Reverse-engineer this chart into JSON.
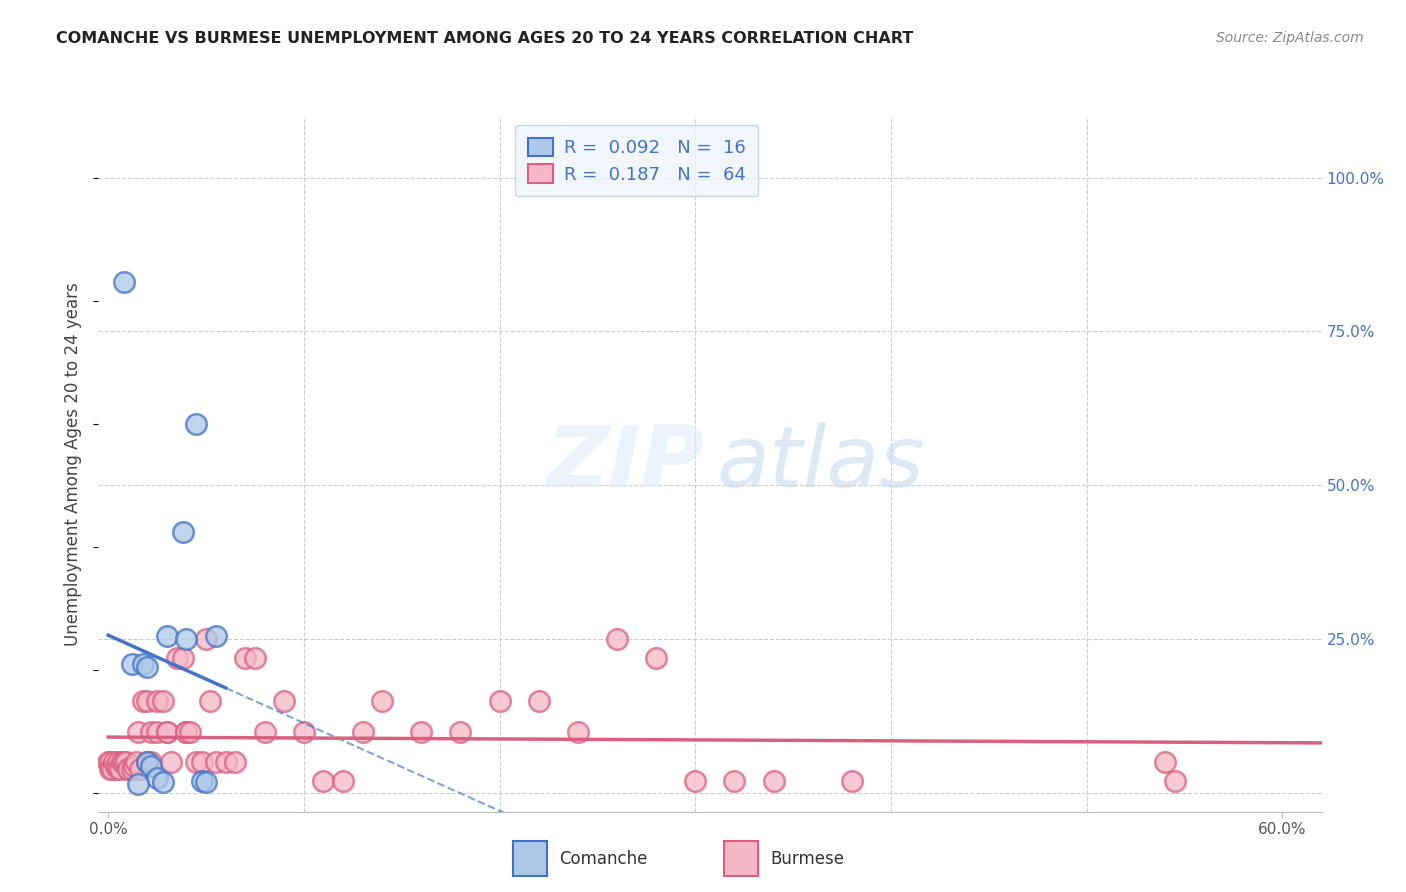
{
  "title": "COMANCHE VS BURMESE UNEMPLOYMENT AMONG AGES 20 TO 24 YEARS CORRELATION CHART",
  "source": "Source: ZipAtlas.com",
  "ylabel": "Unemployment Among Ages 20 to 24 years",
  "xlim": [
    -0.005,
    0.62
  ],
  "ylim": [
    -0.03,
    1.1
  ],
  "comanche_x": [
    0.008,
    0.012,
    0.018,
    0.02,
    0.02,
    0.022,
    0.025,
    0.03,
    0.038,
    0.04,
    0.045,
    0.048,
    0.05,
    0.055,
    0.028,
    0.015
  ],
  "comanche_y": [
    0.83,
    0.21,
    0.21,
    0.205,
    0.05,
    0.045,
    0.025,
    0.255,
    0.425,
    0.25,
    0.6,
    0.02,
    0.018,
    0.255,
    0.018,
    0.015
  ],
  "burmese_x": [
    0.0,
    0.001,
    0.001,
    0.002,
    0.003,
    0.004,
    0.005,
    0.005,
    0.006,
    0.007,
    0.008,
    0.009,
    0.01,
    0.01,
    0.012,
    0.013,
    0.014,
    0.015,
    0.016,
    0.018,
    0.02,
    0.02,
    0.022,
    0.022,
    0.025,
    0.025,
    0.028,
    0.03,
    0.03,
    0.032,
    0.035,
    0.038,
    0.04,
    0.04,
    0.042,
    0.045,
    0.048,
    0.05,
    0.052,
    0.055,
    0.06,
    0.065,
    0.07,
    0.075,
    0.08,
    0.09,
    0.1,
    0.11,
    0.12,
    0.13,
    0.14,
    0.16,
    0.18,
    0.2,
    0.22,
    0.24,
    0.26,
    0.28,
    0.3,
    0.32,
    0.34,
    0.38,
    0.54,
    0.545
  ],
  "burmese_y": [
    0.05,
    0.05,
    0.04,
    0.04,
    0.05,
    0.045,
    0.05,
    0.04,
    0.04,
    0.05,
    0.05,
    0.05,
    0.04,
    0.04,
    0.04,
    0.045,
    0.05,
    0.1,
    0.04,
    0.15,
    0.15,
    0.05,
    0.05,
    0.1,
    0.1,
    0.15,
    0.15,
    0.1,
    0.1,
    0.05,
    0.22,
    0.22,
    0.1,
    0.1,
    0.1,
    0.05,
    0.05,
    0.25,
    0.15,
    0.05,
    0.05,
    0.05,
    0.22,
    0.22,
    0.1,
    0.15,
    0.1,
    0.02,
    0.02,
    0.1,
    0.15,
    0.1,
    0.1,
    0.15,
    0.15,
    0.1,
    0.25,
    0.22,
    0.02,
    0.02,
    0.02,
    0.02,
    0.05,
    0.02
  ],
  "comanche_color": "#adc8e8",
  "comanche_line_color": "#4472c4",
  "burmese_color": "#f5b8c8",
  "burmese_line_color": "#d96080",
  "comanche_R": "0.092",
  "comanche_N": "16",
  "burmese_R": "0.187",
  "burmese_N": "64",
  "yticks_right": [
    0.0,
    0.25,
    0.5,
    0.75,
    1.0
  ],
  "yticklabels_right": [
    "",
    "25.0%",
    "50.0%",
    "75.0%",
    "100.0%"
  ],
  "grid_color": "#cccccc",
  "legend_facecolor": "#eef4fc",
  "legend_edgecolor": "#b8cfe0",
  "watermark_color_zip": "#ddeaf8",
  "watermark_color_atlas": "#c5d8ee"
}
